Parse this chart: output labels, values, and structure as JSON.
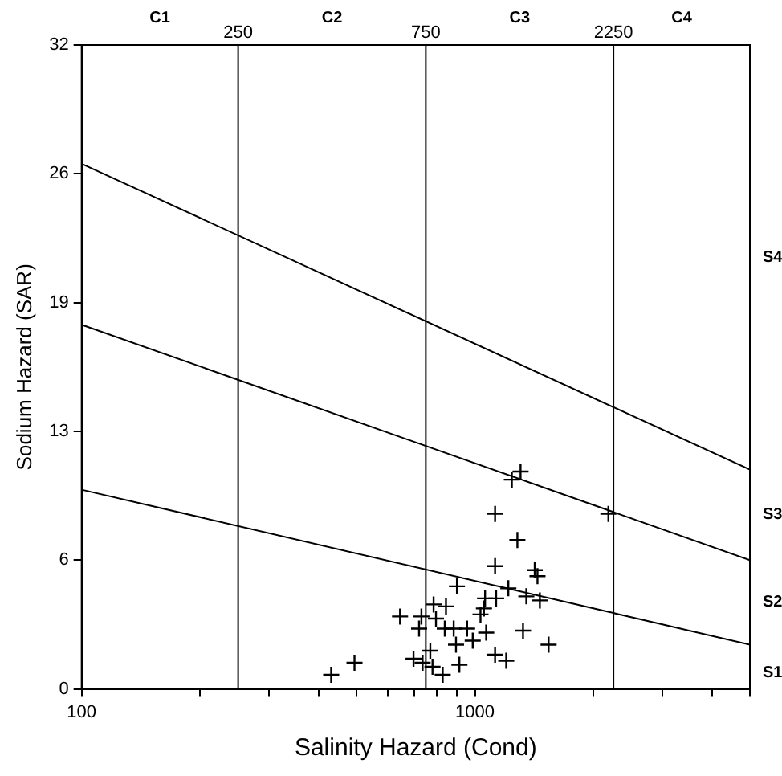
{
  "chart_data": {
    "type": "scatter",
    "xlabel": "Salinity Hazard (Cond)",
    "ylabel": "Sodium Hazard (SAR)",
    "log": "x",
    "grid": false,
    "legend": false,
    "xlim": [
      100,
      5000
    ],
    "xticks": [
      100,
      {
        "value": 200,
        "label": null
      },
      {
        "value": 300,
        "label": null
      },
      {
        "value": 400,
        "label": null
      },
      {
        "value": 500,
        "label": null
      },
      {
        "value": 600,
        "label": null
      },
      {
        "value": 700,
        "label": null
      },
      {
        "value": 800,
        "label": null
      },
      {
        "value": 900,
        "label": null
      },
      1000,
      {
        "value": 2000,
        "label": null
      },
      {
        "value": 3000,
        "label": null
      },
      {
        "value": 4000,
        "label": null
      },
      {
        "value": 5000,
        "label": null
      }
    ],
    "ylim": [
      0,
      32
    ],
    "yticks": [
      0,
      {
        "value": 6.4,
        "label": "6"
      },
      {
        "value": 12.8,
        "label": "13"
      },
      {
        "value": 19.2,
        "label": "19"
      },
      {
        "value": 25.6,
        "label": "26"
      },
      32
    ],
    "ref_lines": [
      {
        "axis": "x",
        "value": 250,
        "label": "250",
        "color": "#000000"
      },
      {
        "axis": "x",
        "value": 750,
        "label": "750",
        "color": "#000000"
      },
      {
        "axis": "x",
        "value": 2250,
        "label": "2250",
        "color": "#000000"
      }
    ],
    "annotations": [
      "C1",
      "C2",
      "C3",
      "C4",
      "S1",
      "S2",
      "S3",
      "S4"
    ],
    "series": [
      {
        "marker": "cross",
        "color": "#000000",
        "x": [
          1306,
          1241,
          1125,
          1282,
          2184,
          1125,
          1419,
          1442,
          900,
          1216,
          1351,
          1462,
          1061,
          1132,
          1054,
          1033,
          785,
          844,
          645,
          731,
          796,
          721,
          838,
          883,
          955,
          1068,
          1325,
          895,
          987,
          1539,
          770,
          698,
          736,
          1125,
          1201,
          913,
          828,
          494,
          431,
          780
        ],
        "values": [
          10.8,
          10.4,
          8.7,
          7.4,
          8.7,
          6.1,
          5.9,
          5.6,
          5.1,
          5.0,
          4.6,
          4.4,
          4.5,
          4.5,
          4.0,
          3.7,
          4.2,
          4.1,
          3.6,
          3.6,
          3.5,
          3.0,
          3.0,
          3.0,
          3.0,
          2.8,
          2.9,
          2.2,
          2.4,
          2.2,
          1.9,
          1.5,
          1.3,
          1.7,
          1.4,
          1.2,
          0.7,
          1.3,
          0.7,
          1.1
        ]
      },
      {
        "type": "line",
        "color": "#000000",
        "x": [
          100,
          5000
        ],
        "values": [
          9.9,
          2.2
        ]
      },
      {
        "type": "line",
        "color": "#000000",
        "x": [
          100,
          5000
        ],
        "values": [
          18.1,
          6.4
        ]
      },
      {
        "type": "line",
        "color": "#000000",
        "x": [
          100,
          5000
        ],
        "values": [
          26.1,
          10.9
        ]
      }
    ]
  }
}
